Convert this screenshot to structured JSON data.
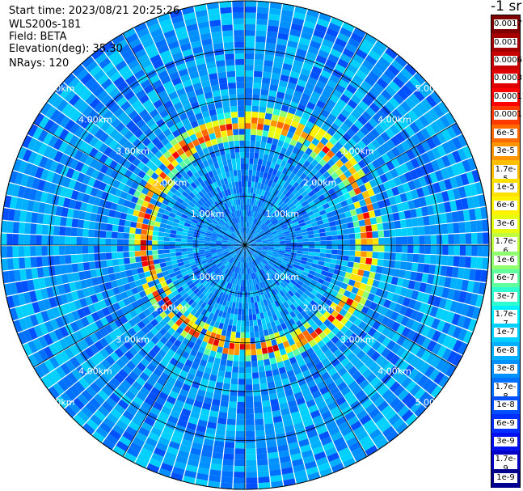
{
  "header": {
    "start_time": "Start time: 2023/08/21 20:25:26",
    "instrument": "WLS200s-181",
    "field": "Field: BETA",
    "elevation": "Elevation(deg): 35.30",
    "nrays": "NRays: 120"
  },
  "colorbar": {
    "title": "-1 sr",
    "labels": [
      "0.0017",
      "0.001",
      "0.0006",
      "0.0003",
      "0.00017",
      "0.0001",
      "6e-5",
      "3e-5",
      "1.7e-5",
      "1e-5",
      "6e-6",
      "3e-6",
      "1.7e-6",
      "1e-6",
      "6e-7",
      "3e-7",
      "1.7e-7",
      "1e-7",
      "6e-8",
      "3e-8",
      "1.7e-8",
      "1e-8",
      "6e-9",
      "3e-9",
      "1.7e-9",
      "1e-9"
    ],
    "colors": [
      "#7f0000",
      "#a50000",
      "#c80000",
      "#e00000",
      "#ff0000",
      "#ff3a00",
      "#ff6a00",
      "#ff9500",
      "#ffbe00",
      "#ffe000",
      "#fff200",
      "#e6ff10",
      "#bfff3f",
      "#8fff6f",
      "#5fffa0",
      "#2fffd0",
      "#00f0ff",
      "#00d0ff",
      "#00b0ff",
      "#0090ff",
      "#0070ff",
      "#0050ff",
      "#0030ff",
      "#0010ee",
      "#0000c8",
      "#00008f"
    ]
  },
  "chart_data": {
    "type": "heatmap",
    "projection": "polar-ppi",
    "field": "BETA",
    "rays": 120,
    "range_rings_km": [
      1,
      2,
      3,
      4,
      5
    ],
    "range_labels": [
      "1.00km",
      "2.00km",
      "3.00km",
      "4.00km",
      "5.00km"
    ],
    "max_range_km": 5.0,
    "azimuth_gridlines_deg": [
      0,
      30,
      60,
      90,
      120,
      150,
      180,
      210,
      240,
      270,
      300,
      330
    ],
    "colorscale": "jet-log",
    "value_range": [
      1e-09,
      0.0017
    ],
    "notable_features": {
      "aerosol_ring_radius_km": [
        2.0,
        2.6
      ],
      "ring_peak_value": 0.0006,
      "near_range_value": 1e-08,
      "background_value": 3e-08
    }
  }
}
